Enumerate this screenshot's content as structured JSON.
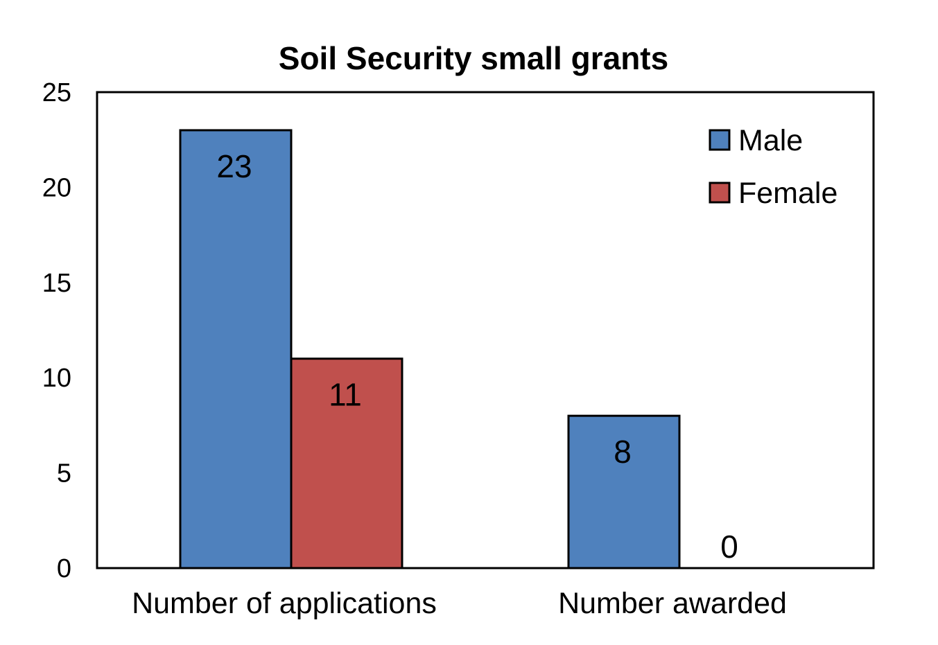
{
  "chart_data": {
    "type": "bar",
    "title": "Soil Security small grants",
    "xlabel": "",
    "ylabel": "",
    "categories": [
      "Number of applications",
      "Number awarded"
    ],
    "series": [
      {
        "name": "Male",
        "values": [
          23,
          8
        ],
        "color": "#4F81BD"
      },
      {
        "name": "Female",
        "values": [
          11,
          0
        ],
        "color": "#C0504D"
      }
    ],
    "ylim": [
      0,
      25
    ],
    "yticks": [
      0,
      5,
      10,
      15,
      20,
      25
    ],
    "data_labels": true,
    "legend_position": "top-right",
    "grid": false
  }
}
